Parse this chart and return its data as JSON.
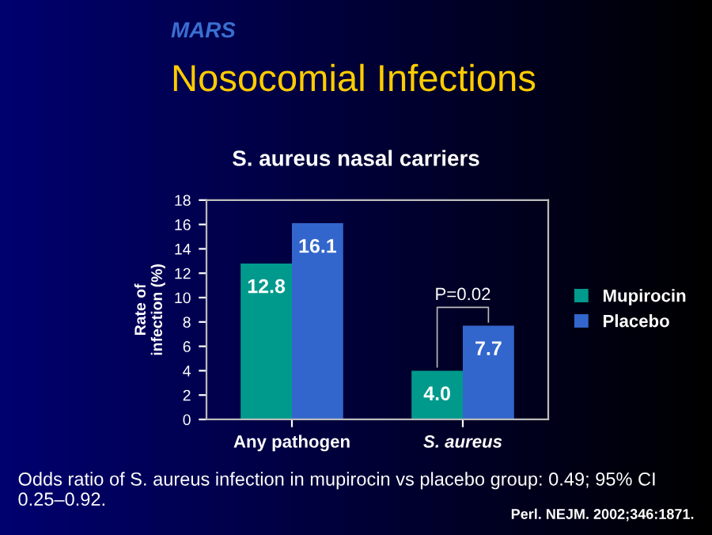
{
  "chart_data": {
    "type": "bar",
    "title": "Nosocomial Infections",
    "subtitle": "S. aureus nasal carriers",
    "ylabel": "Rate of\ninfection (%)",
    "categories": [
      "Any pathogen",
      "S. aureus"
    ],
    "series": [
      {
        "name": "Mupirocin",
        "color": "#009a8c",
        "values": [
          12.8,
          4.0
        ],
        "value_labels": [
          "12.8",
          "4.0"
        ]
      },
      {
        "name": "Placebo",
        "color": "#3366cc",
        "values": [
          16.1,
          7.7
        ],
        "value_labels": [
          "16.1",
          "7.7"
        ]
      }
    ],
    "ylim": [
      0,
      18
    ],
    "yticks": [
      0,
      2,
      4,
      6,
      8,
      10,
      12,
      14,
      16,
      18
    ],
    "grid": false,
    "legend": "right",
    "annotations": [
      "MARS",
      "P=0.02",
      "Odds ratio of S. aureus infection in mupirocin vs placebo group: 0.49; 95% CI 0.25–0.92.",
      "Perl. NEJM. 2002;346:1871."
    ]
  }
}
